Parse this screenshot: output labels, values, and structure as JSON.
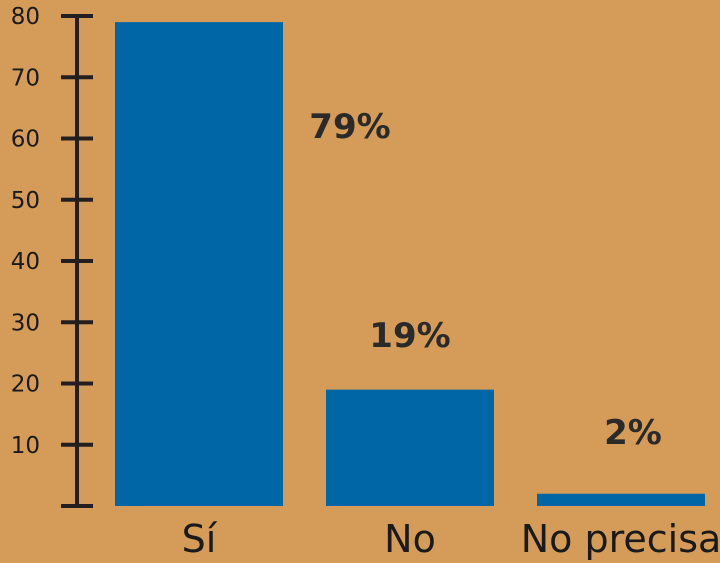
{
  "chart_data": {
    "type": "bar",
    "title": "",
    "xlabel": "",
    "ylabel": "",
    "categories": [
      "Sí",
      "No",
      "No precisa"
    ],
    "values": [
      79,
      19,
      2
    ],
    "data_labels": [
      "79%",
      "19%",
      "2%"
    ],
    "ylim": [
      0,
      80
    ],
    "yticks": [
      10,
      20,
      30,
      40,
      50,
      60,
      70,
      80
    ],
    "grid": false,
    "legend": "none",
    "colors": {
      "background": "#D49C58",
      "bar": "#0066A6",
      "axis": "#231F20"
    }
  }
}
